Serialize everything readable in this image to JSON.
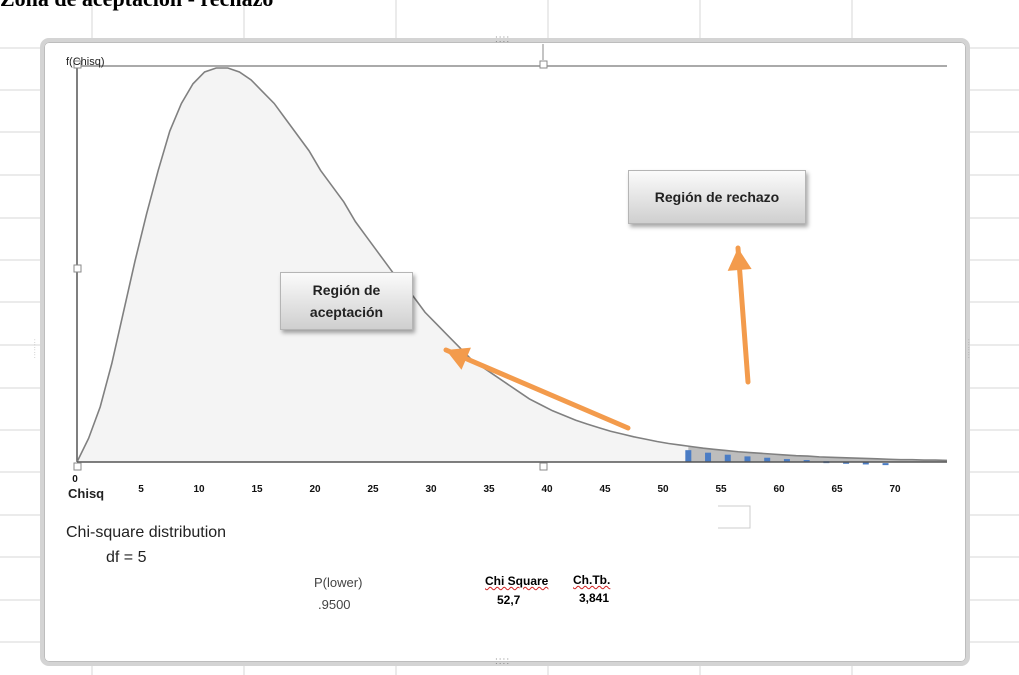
{
  "page_title": "Zona de aceptación - rechazo",
  "colors": {
    "curve": "#808080",
    "fill": "#f4f4f4",
    "reject_fill": "#bdbdbd",
    "bars": "#4a7cc4",
    "arrows": "#f39b4c",
    "axis": "#555555",
    "grid": "#d7d7d7"
  },
  "chart_data": {
    "type": "area",
    "y_axis_label": "f(Chisq)",
    "x_axis_label": "Chisq",
    "distribution_name": "Chi-square distribution",
    "df_label": "df = 5",
    "xlim": [
      0,
      75
    ],
    "x_ticks": [
      "0",
      "5",
      "10",
      "15",
      "20",
      "25",
      "30",
      "35",
      "40",
      "45",
      "50",
      "55",
      "60",
      "65",
      "70"
    ],
    "curve_x": [
      0,
      1,
      2,
      3,
      4,
      5,
      6,
      7,
      8,
      9,
      10,
      11,
      12,
      13,
      14,
      15,
      16,
      17,
      18,
      19,
      20,
      21,
      22,
      23,
      24,
      25,
      26,
      27,
      28,
      29,
      30,
      31,
      32,
      33,
      34,
      35,
      36,
      37,
      38,
      39,
      40,
      41,
      42,
      43,
      44,
      45,
      46,
      47,
      48,
      49,
      50,
      51,
      52,
      53,
      54,
      55,
      56,
      57,
      58,
      59,
      60,
      61,
      62,
      63,
      64,
      65,
      66,
      67,
      68,
      69,
      70,
      71,
      72,
      73,
      74,
      75
    ],
    "curve_y": [
      0.0,
      0.06,
      0.14,
      0.25,
      0.38,
      0.51,
      0.63,
      0.74,
      0.84,
      0.91,
      0.96,
      0.99,
      1.0,
      1.0,
      0.99,
      0.97,
      0.94,
      0.91,
      0.87,
      0.83,
      0.79,
      0.74,
      0.7,
      0.66,
      0.61,
      0.57,
      0.53,
      0.49,
      0.45,
      0.42,
      0.38,
      0.35,
      0.32,
      0.29,
      0.26,
      0.24,
      0.22,
      0.2,
      0.18,
      0.16,
      0.145,
      0.13,
      0.118,
      0.106,
      0.096,
      0.087,
      0.078,
      0.071,
      0.064,
      0.058,
      0.052,
      0.047,
      0.043,
      0.039,
      0.035,
      0.032,
      0.029,
      0.026,
      0.024,
      0.022,
      0.02,
      0.018,
      0.016,
      0.015,
      0.013,
      0.012,
      0.011,
      0.01,
      0.009,
      0.008,
      0.007,
      0.006,
      0.006,
      0.005,
      0.005,
      0.004
    ],
    "rejection_start": 52.7,
    "reject_bars_x": [
      52.7,
      54.4,
      56.1,
      57.8,
      59.5,
      61.2,
      62.9,
      64.6,
      66.3,
      68.0,
      69.7
    ],
    "regions": {
      "acceptance": "Región de aceptación",
      "rejection": "Región de rechazo"
    },
    "p_lower_label": "P(lower)",
    "p_lower_value": ".9500",
    "chi_square_label": "Chi Square",
    "chi_square_value": "52,7",
    "chi_table_label": "Ch.Tb.",
    "chi_table_value": "3,841"
  }
}
